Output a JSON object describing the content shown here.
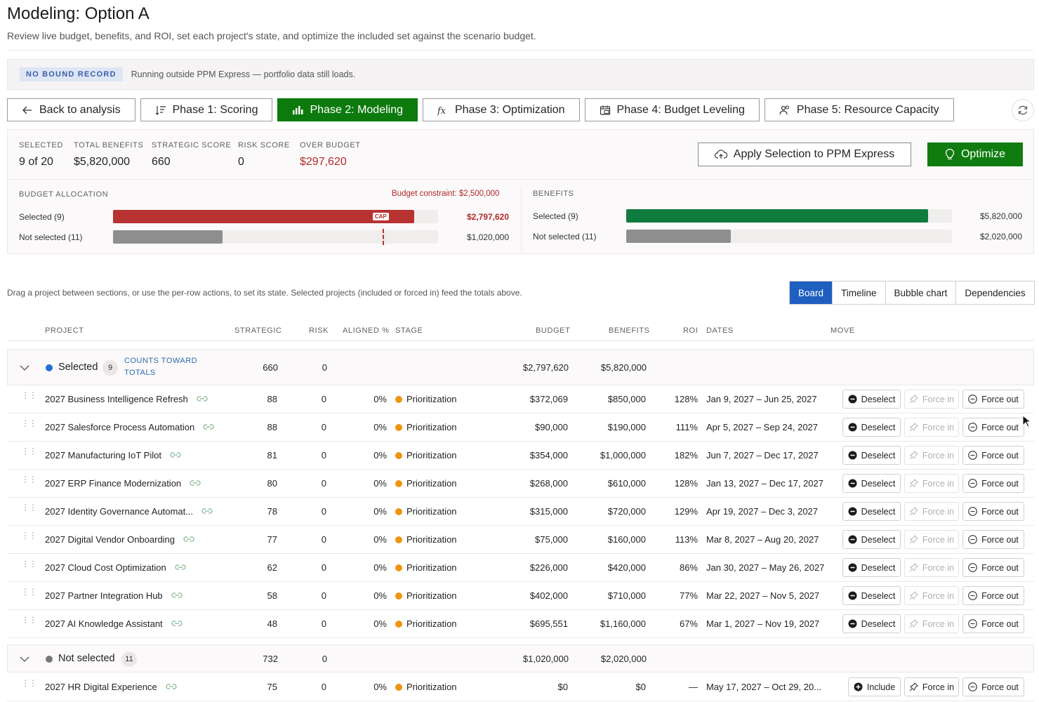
{
  "page": {
    "title": "Modeling: Option A",
    "subtitle": "Review live budget, benefits, and ROI, set each project's state, and optimize the included set against the scenario budget."
  },
  "banner": {
    "badge": "NO BOUND RECORD",
    "message": "Running outside PPM Express — portfolio data still loads."
  },
  "tabs": [
    {
      "label": "Back to analysis",
      "icon": "arrow-left-icon"
    },
    {
      "label": "Phase 1: Scoring",
      "icon": "sort-icon"
    },
    {
      "label": "Phase 2: Modeling",
      "icon": "bar-chart-icon",
      "active": true
    },
    {
      "label": "Phase 3: Optimization",
      "icon": "function-icon"
    },
    {
      "label": "Phase 4: Budget Leveling",
      "icon": "calendar-money-icon"
    },
    {
      "label": "Phase 5: Resource Capacity",
      "icon": "people-icon"
    }
  ],
  "stats": {
    "selected": {
      "label": "SELECTED",
      "value": "9 of 20"
    },
    "total_benefits": {
      "label": "TOTAL BENEFITS",
      "value": "$5,820,000"
    },
    "strategic_score": {
      "label": "STRATEGIC SCORE",
      "value": "660"
    },
    "risk_score": {
      "label": "RISK SCORE",
      "value": "0"
    },
    "over_budget": {
      "label": "OVER BUDGET",
      "value": "$297,620"
    }
  },
  "actions": {
    "apply": "Apply Selection to PPM Express",
    "optimize": "Optimize"
  },
  "budget_allocation": {
    "title": "BUDGET ALLOCATION",
    "constraint": "Budget constraint: $2,500,000",
    "cap_label": "CAP",
    "selected": {
      "label": "Selected (9)",
      "amount": "$2,797,620",
      "fraction": 0.927
    },
    "not_selected": {
      "label": "Not selected (11)",
      "amount": "$1,020,000",
      "fraction": 0.338
    },
    "cap_fraction": 0.829
  },
  "benefits": {
    "title": "BENEFITS",
    "selected": {
      "label": "Selected (9)",
      "amount": "$5,820,000",
      "fraction": 0.926
    },
    "not_selected": {
      "label": "Not selected (11)",
      "amount": "$2,020,000",
      "fraction": 0.321
    }
  },
  "hint": "Drag a project between sections, or use the per-row actions, to set its state. Selected projects (included or forced in) feed the totals above.",
  "views": [
    {
      "label": "Board",
      "active": true
    },
    {
      "label": "Timeline"
    },
    {
      "label": "Bubble chart"
    },
    {
      "label": "Dependencies"
    }
  ],
  "columns": {
    "project": "PROJECT",
    "strategic": "STRATEGIC",
    "risk": "RISK",
    "aligned": "ALIGNED %",
    "stage": "STAGE",
    "budget": "BUDGET",
    "benefits": "BENEFITS",
    "roi": "ROI",
    "dates": "DATES",
    "move": "MOVE"
  },
  "groups": {
    "selected": {
      "name": "Selected",
      "count": "9",
      "counts_note": "COUNTS TOWARD TOTALS",
      "strategic": "660",
      "risk": "0",
      "budget": "$2,797,620",
      "benefits": "$5,820,000",
      "dot_color": "#1f6fd6"
    },
    "not_selected": {
      "name": "Not selected",
      "count": "11",
      "strategic": "732",
      "risk": "0",
      "budget": "$1,020,000",
      "benefits": "$2,020,000",
      "dot_color": "#777777"
    }
  },
  "row_actions": {
    "deselect": "Deselect",
    "include": "Include",
    "force_in": "Force in",
    "force_out": "Force out"
  },
  "selected_rows": [
    {
      "name": "2027 Business Intelligence Refresh",
      "strategic": "88",
      "risk": "0",
      "aligned": "0%",
      "stage": "Prioritization",
      "budget": "$372,069",
      "benefits": "$850,000",
      "roi": "128%",
      "dates": "Jan 9, 2027 – Jun 25, 2027"
    },
    {
      "name": "2027 Salesforce Process Automation",
      "strategic": "88",
      "risk": "0",
      "aligned": "0%",
      "stage": "Prioritization",
      "budget": "$90,000",
      "benefits": "$190,000",
      "roi": "111%",
      "dates": "Apr 5, 2027 – Sep 24, 2027"
    },
    {
      "name": "2027 Manufacturing IoT Pilot",
      "strategic": "81",
      "risk": "0",
      "aligned": "0%",
      "stage": "Prioritization",
      "budget": "$354,000",
      "benefits": "$1,000,000",
      "roi": "182%",
      "dates": "Jun 7, 2027 – Dec 17, 2027"
    },
    {
      "name": "2027 ERP Finance Modernization",
      "strategic": "80",
      "risk": "0",
      "aligned": "0%",
      "stage": "Prioritization",
      "budget": "$268,000",
      "benefits": "$610,000",
      "roi": "128%",
      "dates": "Jan 13, 2027 – Dec 17, 2027"
    },
    {
      "name": "2027 Identity Governance Automat...",
      "strategic": "78",
      "risk": "0",
      "aligned": "0%",
      "stage": "Prioritization",
      "budget": "$315,000",
      "benefits": "$720,000",
      "roi": "129%",
      "dates": "Apr 19, 2027 – Dec 3, 2027"
    },
    {
      "name": "2027 Digital Vendor Onboarding",
      "strategic": "77",
      "risk": "0",
      "aligned": "0%",
      "stage": "Prioritization",
      "budget": "$75,000",
      "benefits": "$160,000",
      "roi": "113%",
      "dates": "Mar 8, 2027 – Aug 20, 2027"
    },
    {
      "name": "2027 Cloud Cost Optimization",
      "strategic": "62",
      "risk": "0",
      "aligned": "0%",
      "stage": "Prioritization",
      "budget": "$226,000",
      "benefits": "$420,000",
      "roi": "86%",
      "dates": "Jan 30, 2027 – May 26, 2027"
    },
    {
      "name": "2027 Partner Integration Hub",
      "strategic": "58",
      "risk": "0",
      "aligned": "0%",
      "stage": "Prioritization",
      "budget": "$402,000",
      "benefits": "$710,000",
      "roi": "77%",
      "dates": "Mar 22, 2027 – Nov 5, 2027"
    },
    {
      "name": "2027 AI Knowledge Assistant",
      "strategic": "48",
      "risk": "0",
      "aligned": "0%",
      "stage": "Prioritization",
      "budget": "$695,551",
      "benefits": "$1,160,000",
      "roi": "67%",
      "dates": "Mar 1, 2027 – Nov 19, 2027"
    }
  ],
  "not_selected_rows": [
    {
      "name": "2027 HR Digital Experience",
      "strategic": "75",
      "risk": "0",
      "aligned": "0%",
      "stage": "Prioritization",
      "budget": "$0",
      "benefits": "$0",
      "roi": "—",
      "dates": "May 17, 2027 – Oct 29, 20..."
    }
  ],
  "colors": {
    "accent_green": "#107c10",
    "over_budget_red": "#b02a2a",
    "budget_bar_red": "#b83232",
    "benefits_bar_green": "#0f7b3c",
    "neutral_bar": "#8e8e8e",
    "stage_orange": "#f0930f",
    "board_blue": "#1f5fc0"
  }
}
